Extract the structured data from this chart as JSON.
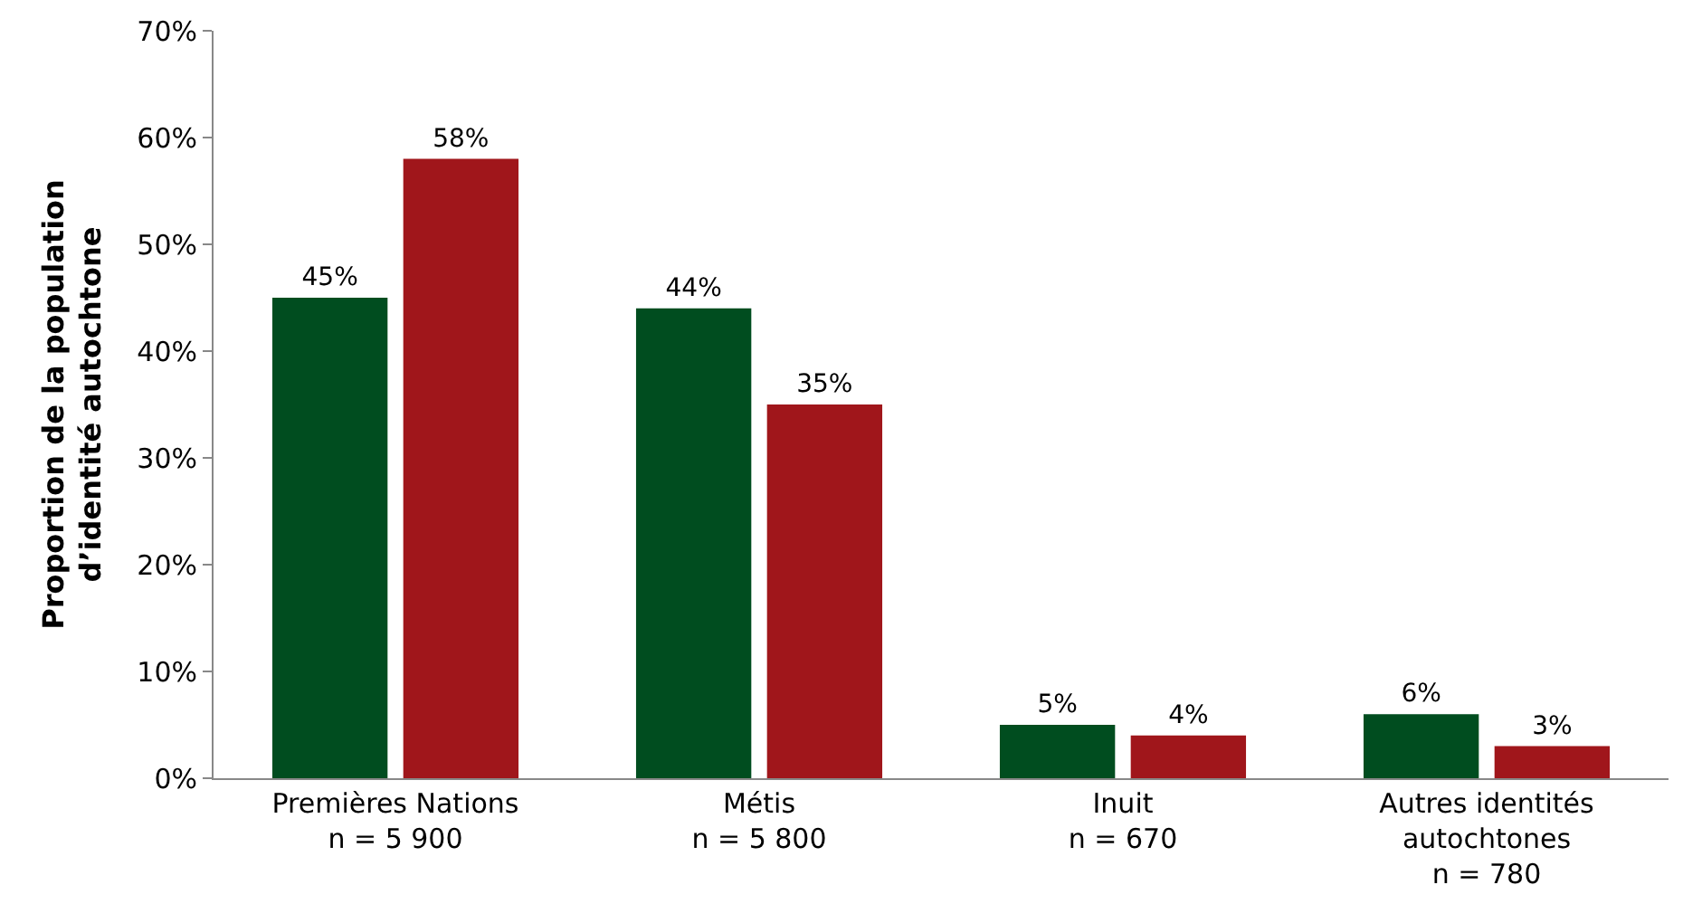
{
  "chart_data": {
    "type": "bar",
    "ylabel": "Proportion de la population\nd’identité autochtone",
    "categories": [
      "Premières Nations\nn = 5 900",
      "Métis\nn = 5 800",
      "Inuit\nn = 670",
      "Autres identités\nautochtones\nn = 780"
    ],
    "series": [
      {
        "color": "#004d1f",
        "values": [
          45,
          44,
          5,
          6
        ],
        "value_labels": [
          "45%",
          "44%",
          "5%",
          "6%"
        ]
      },
      {
        "color": "#a0161b",
        "values": [
          58,
          35,
          4,
          3
        ],
        "value_labels": [
          "58%",
          "35%",
          "4%",
          "3%"
        ]
      }
    ],
    "ylim": [
      0,
      70
    ],
    "yticks": [
      {
        "value": 0,
        "label": "0%"
      },
      {
        "value": 10,
        "label": "10%"
      },
      {
        "value": 20,
        "label": "20%"
      },
      {
        "value": 30,
        "label": "30%"
      },
      {
        "value": 40,
        "label": "40%"
      },
      {
        "value": 50,
        "label": "50%"
      },
      {
        "value": 60,
        "label": "60%"
      },
      {
        "value": 70,
        "label": "70%"
      }
    ],
    "legend": false
  }
}
